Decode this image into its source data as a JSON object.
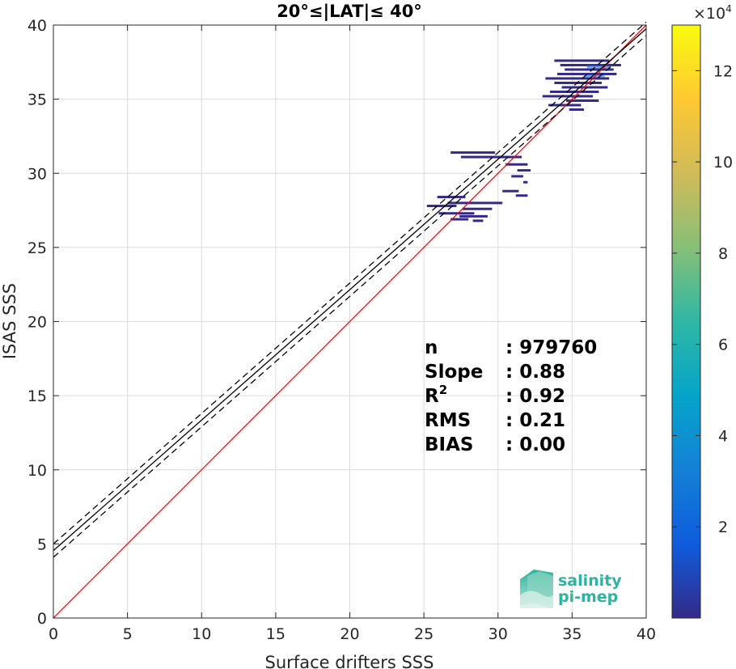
{
  "chart_data": {
    "type": "scatter",
    "title": "20°≤|LAT|≤ 40°",
    "xlabel": "Surface drifters SSS",
    "ylabel": "ISAS SSS",
    "xlim": [
      0,
      40
    ],
    "ylim": [
      0,
      40
    ],
    "xticks": [
      0,
      5,
      10,
      15,
      20,
      25,
      30,
      35,
      40
    ],
    "yticks": [
      0,
      5,
      10,
      15,
      20,
      25,
      30,
      35,
      40
    ],
    "grid": true,
    "colorbar": {
      "range": [
        0,
        13
      ],
      "ticks": [
        2,
        4,
        6,
        8,
        10,
        12
      ],
      "exponent_label": "×10",
      "exponent_power": "4",
      "colors": [
        "#352a87",
        "#0f5cdd",
        "#1481d6",
        "#06a4ca",
        "#2eb7a4",
        "#87bf77",
        "#d1bb59",
        "#fec832",
        "#f9fb0e"
      ]
    },
    "lines": [
      {
        "name": "one-to-one",
        "color": "#ff0000",
        "style": "solid",
        "points": [
          [
            0,
            0
          ],
          [
            40,
            40
          ]
        ]
      },
      {
        "name": "fit",
        "color": "#000000",
        "style": "solid",
        "points": [
          [
            0,
            4.55
          ],
          [
            40,
            39.75
          ]
        ]
      },
      {
        "name": "fit-upper",
        "color": "#000000",
        "style": "dashed",
        "points": [
          [
            0,
            5.0
          ],
          [
            40,
            40.2
          ]
        ]
      },
      {
        "name": "fit-lower",
        "color": "#000000",
        "style": "dashed",
        "points": [
          [
            0,
            4.1
          ],
          [
            40,
            39.3
          ]
        ]
      }
    ],
    "density_segments": [
      {
        "x1": 33.8,
        "x2": 37.5,
        "y": 37.6
      },
      {
        "x1": 34.2,
        "x2": 38.3,
        "y": 37.3
      },
      {
        "x1": 34.5,
        "x2": 37.8,
        "y": 37.0
      },
      {
        "x1": 34.0,
        "x2": 38.0,
        "y": 36.7
      },
      {
        "x1": 33.2,
        "x2": 37.5,
        "y": 36.4
      },
      {
        "x1": 33.8,
        "x2": 37.0,
        "y": 36.1
      },
      {
        "x1": 34.3,
        "x2": 37.4,
        "y": 35.8
      },
      {
        "x1": 33.5,
        "x2": 36.8,
        "y": 35.5
      },
      {
        "x1": 33.0,
        "x2": 36.4,
        "y": 35.2
      },
      {
        "x1": 34.6,
        "x2": 36.8,
        "y": 34.9
      },
      {
        "x1": 33.4,
        "x2": 35.6,
        "y": 34.6
      },
      {
        "x1": 34.8,
        "x2": 35.8,
        "y": 34.3
      },
      {
        "x1": 26.8,
        "x2": 29.8,
        "y": 31.4
      },
      {
        "x1": 27.5,
        "x2": 31.6,
        "y": 31.1
      },
      {
        "x1": 30.5,
        "x2": 32.0,
        "y": 30.6
      },
      {
        "x1": 31.3,
        "x2": 32.2,
        "y": 30.2
      },
      {
        "x1": 30.9,
        "x2": 31.7,
        "y": 29.8
      },
      {
        "x1": 31.7,
        "x2": 32.0,
        "y": 29.4
      },
      {
        "x1": 30.3,
        "x2": 31.4,
        "y": 28.8
      },
      {
        "x1": 31.2,
        "x2": 32.0,
        "y": 28.5
      },
      {
        "x1": 25.9,
        "x2": 27.8,
        "y": 28.4
      },
      {
        "x1": 26.6,
        "x2": 30.3,
        "y": 28.0
      },
      {
        "x1": 25.2,
        "x2": 27.2,
        "y": 27.8
      },
      {
        "x1": 27.6,
        "x2": 29.6,
        "y": 27.6
      },
      {
        "x1": 26.0,
        "x2": 28.4,
        "y": 27.3
      },
      {
        "x1": 27.4,
        "x2": 29.3,
        "y": 27.1
      },
      {
        "x1": 26.8,
        "x2": 28.0,
        "y": 26.9
      },
      {
        "x1": 28.3,
        "x2": 29.0,
        "y": 26.8
      }
    ],
    "dense_core": [
      {
        "x1": 36.0,
        "x2": 37.6,
        "y": 37.2
      },
      {
        "x1": 35.8,
        "x2": 37.2,
        "y": 36.6
      }
    ],
    "stats": [
      {
        "label": "n",
        "value": ": 979760"
      },
      {
        "label": "Slope",
        "value": ": 0.88"
      },
      {
        "label": "R",
        "sup": "2",
        "value": ": 0.92"
      },
      {
        "label": "RMS",
        "value": ": 0.21"
      },
      {
        "label": "BIAS",
        "value": ": 0.00"
      }
    ]
  },
  "logo": {
    "line1": "salinity",
    "line2": "pi-mep"
  }
}
